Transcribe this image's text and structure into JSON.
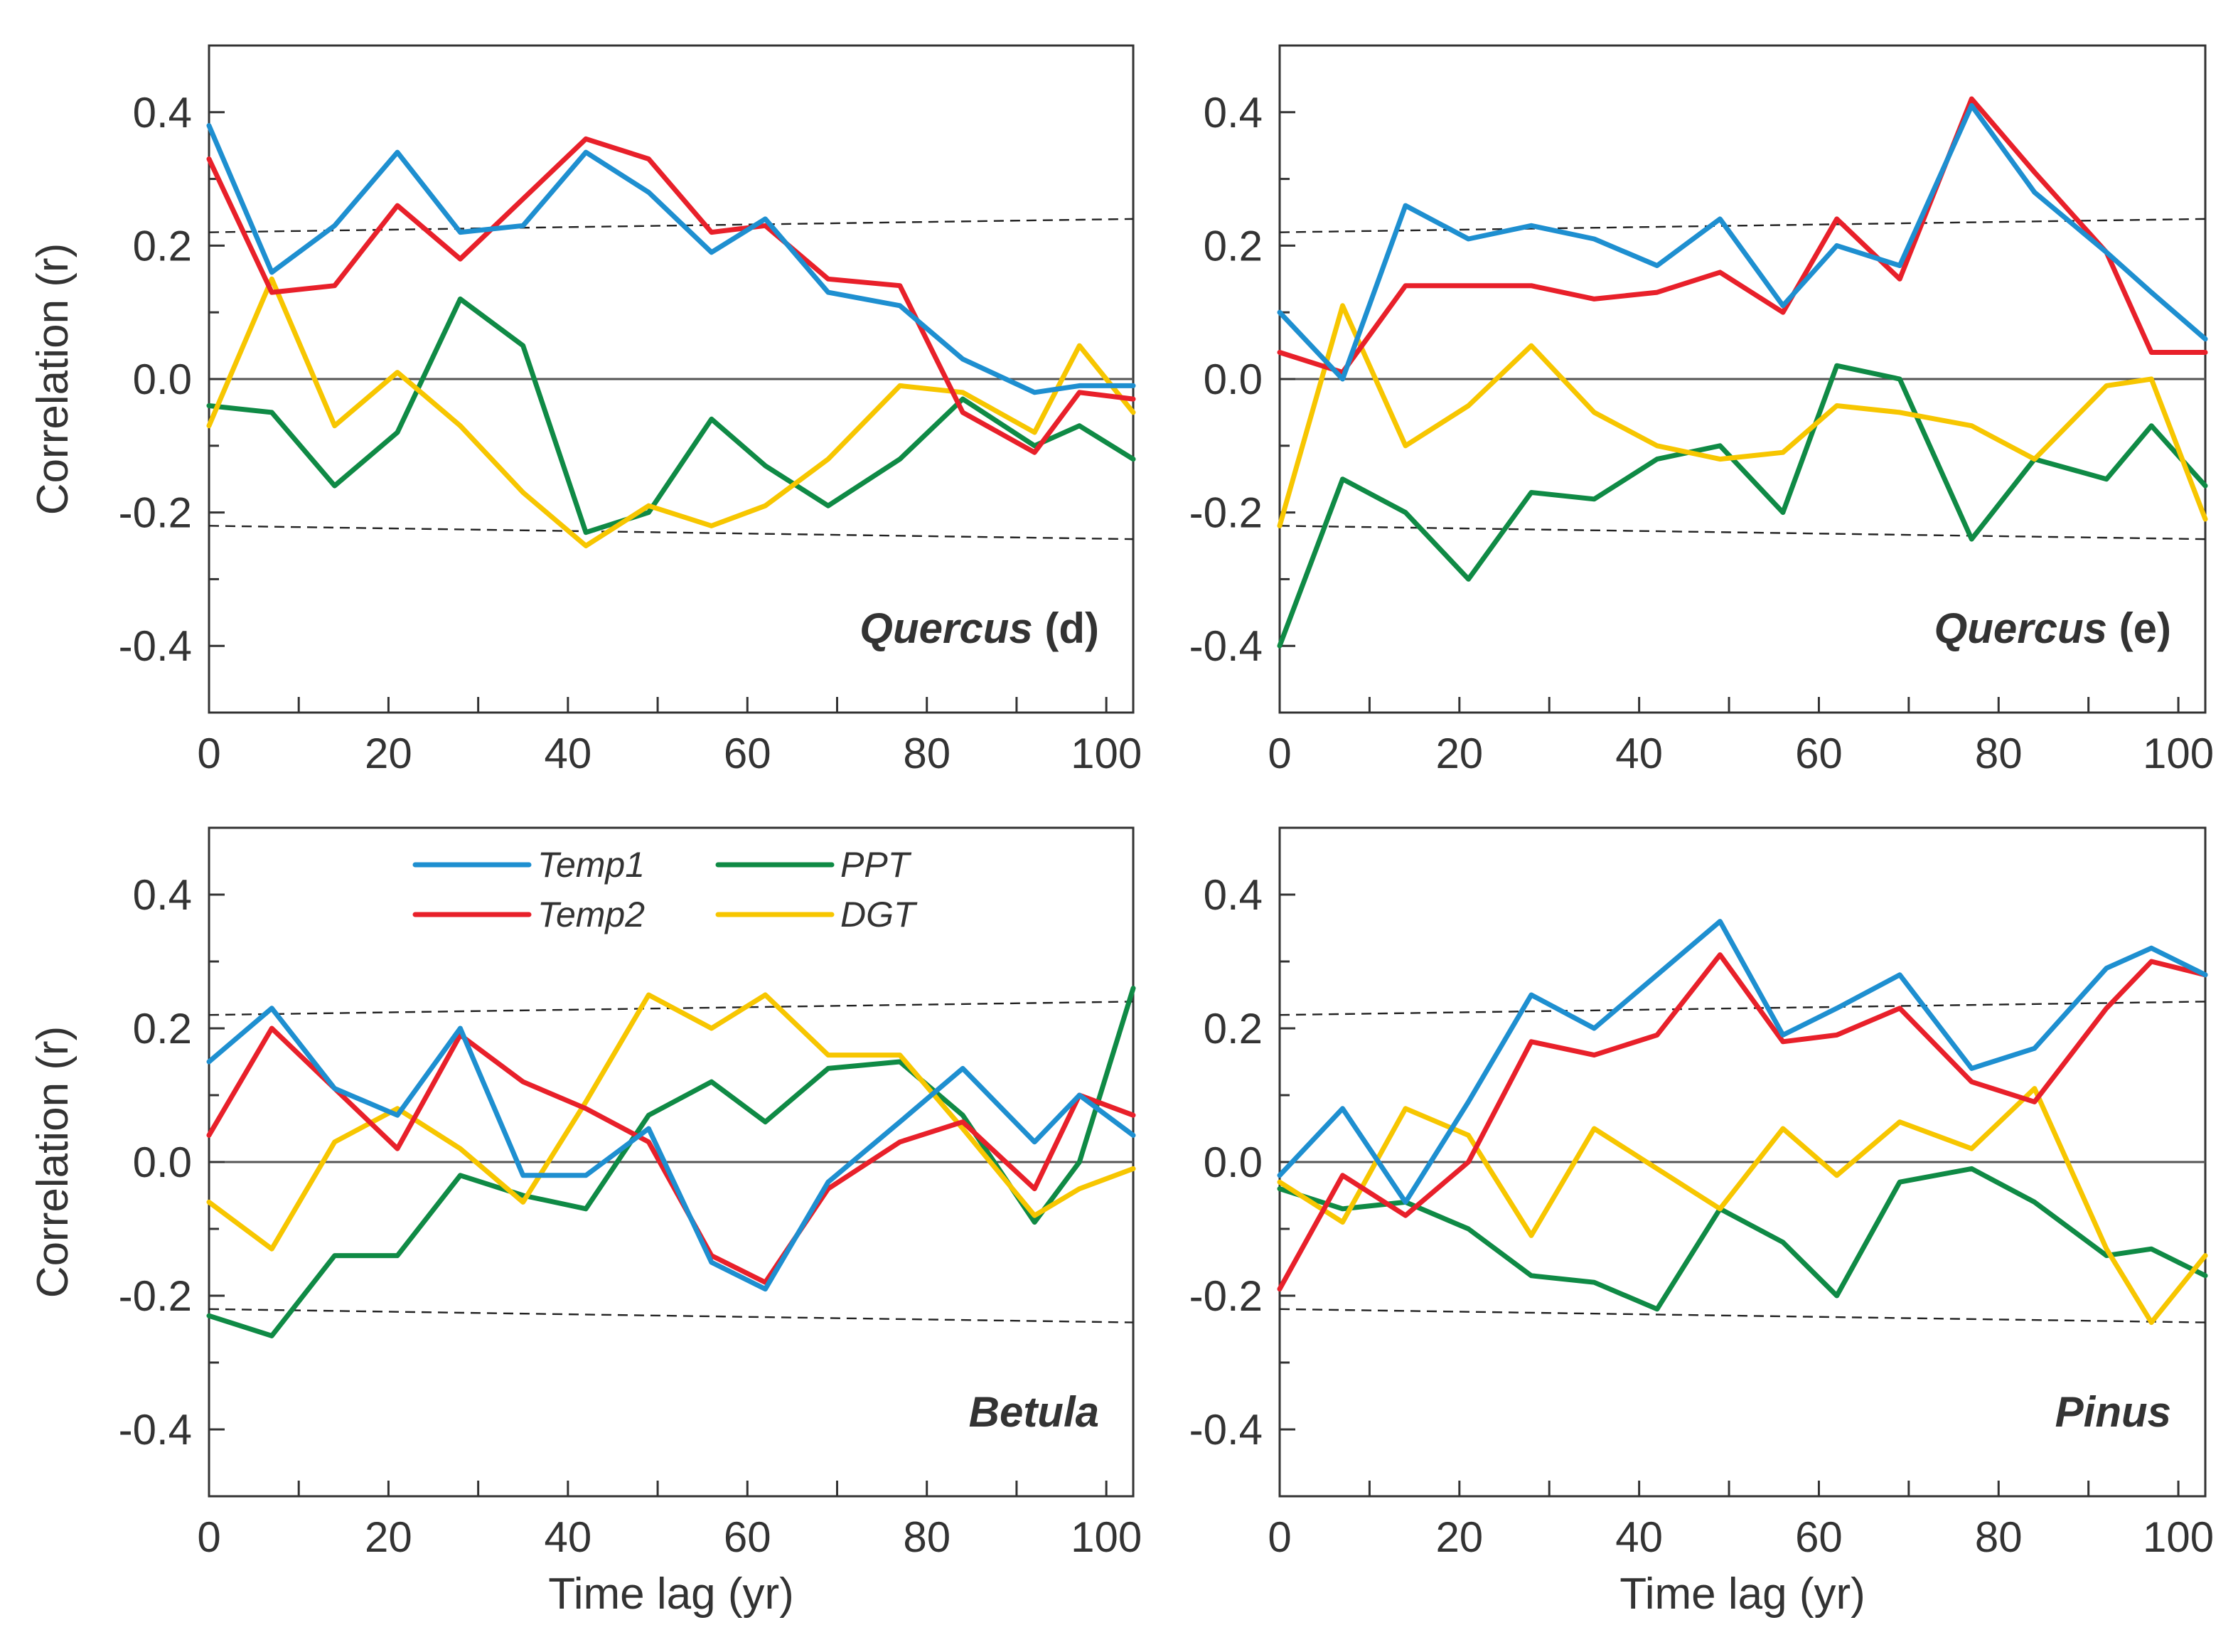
{
  "chart_data": {
    "type": "line",
    "xlabel": "Time lag (yr)",
    "ylabel": "Correlation (r)",
    "xlim": [
      0,
      103
    ],
    "ylim": [
      -0.5,
      0.5
    ],
    "x_ticks": [
      0,
      20,
      40,
      60,
      80,
      100
    ],
    "x_tick_labels": [
      "0",
      "20",
      "40",
      "60",
      "80",
      "100"
    ],
    "y_ticks": [
      0.4,
      0.2,
      0.0,
      -0.2,
      -0.4
    ],
    "y_tick_labels": [
      "0.4",
      "0.2",
      "0.0",
      "-0.2",
      "-0.4"
    ],
    "x_minor_ticks": [
      10,
      30,
      50,
      70,
      90
    ],
    "y_minor_ticks": [
      0.3,
      0.1,
      -0.1,
      -0.3
    ],
    "zero_line": 0,
    "significance_lines": {
      "upper": [
        [
          0,
          0.22
        ],
        [
          103,
          0.24
        ]
      ],
      "lower": [
        [
          0,
          -0.22
        ],
        [
          103,
          -0.24
        ]
      ]
    },
    "colors": {
      "Temp1": "#1e8fd0",
      "Temp2": "#e8202a",
      "PPT": "#0f8a45",
      "DGT": "#f7c600"
    },
    "legend": {
      "placement": "top-left of Betula panel",
      "entries": [
        "Temp1",
        "Temp2",
        "PPT",
        "DGT"
      ]
    },
    "panels": [
      {
        "taxon": "Quercus",
        "suffix": " (d)",
        "x": [
          0,
          7,
          14,
          21,
          28,
          35,
          42,
          49,
          56,
          62,
          69,
          77,
          84,
          92,
          97,
          103
        ],
        "series": [
          {
            "name": "Temp1",
            "values": [
              0.38,
              0.16,
              0.23,
              0.34,
              0.22,
              0.23,
              0.34,
              0.28,
              0.19,
              0.24,
              0.13,
              0.11,
              0.03,
              -0.02,
              -0.01,
              -0.01
            ]
          },
          {
            "name": "Temp2",
            "values": [
              0.33,
              0.13,
              0.14,
              0.26,
              0.18,
              0.27,
              0.36,
              0.33,
              0.22,
              0.23,
              0.15,
              0.14,
              -0.05,
              -0.11,
              -0.02,
              -0.03
            ]
          },
          {
            "name": "PPT",
            "values": [
              -0.04,
              -0.05,
              -0.16,
              -0.08,
              0.12,
              0.05,
              -0.23,
              -0.2,
              -0.06,
              -0.13,
              -0.19,
              -0.12,
              -0.03,
              -0.1,
              -0.07,
              -0.12
            ]
          },
          {
            "name": "DGT",
            "values": [
              -0.07,
              0.15,
              -0.07,
              0.01,
              -0.07,
              -0.17,
              -0.25,
              -0.19,
              -0.22,
              -0.19,
              -0.12,
              -0.01,
              -0.02,
              -0.08,
              0.05,
              -0.05
            ]
          }
        ]
      },
      {
        "taxon": "Quercus",
        "suffix": " (e)",
        "x": [
          0,
          7,
          14,
          21,
          28,
          35,
          42,
          49,
          56,
          62,
          69,
          77,
          84,
          92,
          97,
          103
        ],
        "series": [
          {
            "name": "Temp1",
            "values": [
              0.1,
              0.0,
              0.26,
              0.21,
              0.23,
              0.21,
              0.17,
              0.24,
              0.11,
              0.2,
              0.17,
              0.41,
              0.28,
              0.19,
              0.13,
              0.06
            ]
          },
          {
            "name": "Temp2",
            "values": [
              0.04,
              0.01,
              0.14,
              0.14,
              0.14,
              0.12,
              0.13,
              0.16,
              0.1,
              0.24,
              0.15,
              0.42,
              0.31,
              0.19,
              0.04,
              0.04
            ]
          },
          {
            "name": "PPT",
            "values": [
              -0.4,
              -0.15,
              -0.2,
              -0.3,
              -0.17,
              -0.18,
              -0.12,
              -0.1,
              -0.2,
              0.02,
              0.0,
              -0.24,
              -0.12,
              -0.15,
              -0.07,
              -0.16
            ]
          },
          {
            "name": "DGT",
            "values": [
              -0.22,
              0.11,
              -0.1,
              -0.04,
              0.05,
              -0.05,
              -0.1,
              -0.12,
              -0.11,
              -0.04,
              -0.05,
              -0.07,
              -0.12,
              -0.01,
              0.0,
              -0.21
            ]
          }
        ]
      },
      {
        "taxon": "Betula",
        "suffix": "",
        "x": [
          0,
          7,
          14,
          21,
          28,
          35,
          42,
          49,
          56,
          62,
          69,
          77,
          84,
          92,
          97,
          103
        ],
        "series": [
          {
            "name": "Temp1",
            "values": [
              0.15,
              0.23,
              0.11,
              0.07,
              0.2,
              -0.02,
              -0.02,
              0.05,
              -0.15,
              -0.19,
              -0.03,
              0.06,
              0.14,
              0.03,
              0.1,
              0.04
            ]
          },
          {
            "name": "Temp2",
            "values": [
              0.04,
              0.2,
              0.11,
              0.02,
              0.19,
              0.12,
              0.08,
              0.03,
              -0.14,
              -0.18,
              -0.04,
              0.03,
              0.06,
              -0.04,
              0.1,
              0.07
            ]
          },
          {
            "name": "PPT",
            "values": [
              -0.23,
              -0.26,
              -0.14,
              -0.14,
              -0.02,
              -0.05,
              -0.07,
              0.07,
              0.12,
              0.06,
              0.14,
              0.15,
              0.07,
              -0.09,
              0.0,
              0.26
            ]
          },
          {
            "name": "DGT",
            "values": [
              -0.06,
              -0.13,
              0.03,
              0.08,
              0.02,
              -0.06,
              0.09,
              0.25,
              0.2,
              0.25,
              0.16,
              0.16,
              0.05,
              -0.08,
              -0.04,
              -0.01
            ]
          }
        ]
      },
      {
        "taxon": "Pinus",
        "suffix": "",
        "x": [
          0,
          7,
          14,
          21,
          28,
          35,
          42,
          49,
          56,
          62,
          69,
          77,
          84,
          92,
          97,
          103
        ],
        "series": [
          {
            "name": "Temp1",
            "values": [
              -0.02,
              0.08,
              -0.06,
              0.09,
              0.25,
              0.2,
              0.28,
              0.36,
              0.19,
              0.23,
              0.28,
              0.14,
              0.17,
              0.29,
              0.32,
              0.28
            ]
          },
          {
            "name": "Temp2",
            "values": [
              -0.19,
              -0.02,
              -0.08,
              0.0,
              0.18,
              0.16,
              0.19,
              0.31,
              0.18,
              0.19,
              0.23,
              0.12,
              0.09,
              0.23,
              0.3,
              0.28
            ]
          },
          {
            "name": "PPT",
            "values": [
              -0.04,
              -0.07,
              -0.06,
              -0.1,
              -0.17,
              -0.18,
              -0.22,
              -0.07,
              -0.12,
              -0.2,
              -0.03,
              -0.01,
              -0.06,
              -0.14,
              -0.13,
              -0.17
            ]
          },
          {
            "name": "DGT",
            "values": [
              -0.03,
              -0.09,
              0.08,
              0.04,
              -0.11,
              0.05,
              -0.01,
              -0.07,
              0.05,
              -0.02,
              0.06,
              0.02,
              0.11,
              -0.13,
              -0.24,
              -0.14
            ]
          }
        ]
      }
    ]
  }
}
